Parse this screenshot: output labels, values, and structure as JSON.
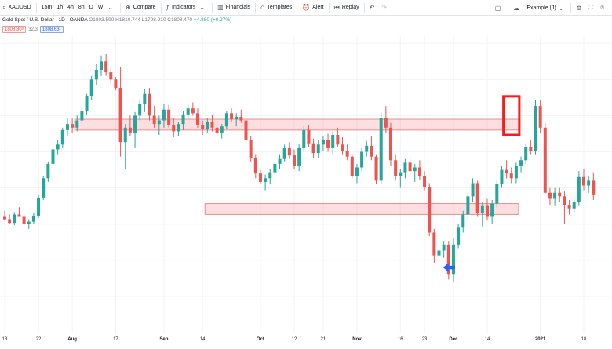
{
  "toolbar": {
    "symbol": "XAUUSD",
    "intervals": [
      "15m",
      "1h",
      "4h",
      "8h",
      "D",
      "W"
    ],
    "compare": "Compare",
    "indicators": "Indicators",
    "financials": "Financials",
    "templates": "Templates",
    "alert": "Alert",
    "replay": "Replay",
    "layout_name": "Example (J)"
  },
  "legend": {
    "title": "Gold Spot / U.S. Dollar · 1D · OANDA",
    "ohlc": "O1803.590 H1810.744 L1798.910 C1808.470",
    "change": "+4.880 (+0.27%)"
  },
  "price_boxes": {
    "sell": "1808.30⁸",
    "spread": "32.3",
    "buy": "1808.63¹"
  },
  "chart_data": {
    "type": "candlestick",
    "y_scale": "price, unlabeled in view",
    "ylim": [
      1742,
      1988
    ],
    "up_color": "#26a69a",
    "down_color": "#ef5350",
    "candles": [
      [
        1838,
        1843,
        1835,
        1836
      ],
      [
        1836,
        1840,
        1832,
        1833
      ],
      [
        1833,
        1842,
        1831,
        1840
      ],
      [
        1840,
        1846,
        1838,
        1838
      ],
      [
        1838,
        1840,
        1831,
        1832
      ],
      [
        1832,
        1836,
        1828,
        1834
      ],
      [
        1834,
        1841,
        1832,
        1839
      ],
      [
        1839,
        1856,
        1837,
        1854
      ],
      [
        1854,
        1872,
        1852,
        1870
      ],
      [
        1870,
        1884,
        1867,
        1882
      ],
      [
        1882,
        1896,
        1879,
        1894
      ],
      [
        1894,
        1902,
        1890,
        1898
      ],
      [
        1898,
        1912,
        1895,
        1910
      ],
      [
        1910,
        1920,
        1905,
        1915
      ],
      [
        1915,
        1920,
        1908,
        1912
      ],
      [
        1912,
        1922,
        1909,
        1918
      ],
      [
        1918,
        1930,
        1915,
        1926
      ],
      [
        1926,
        1940,
        1923,
        1938
      ],
      [
        1938,
        1955,
        1935,
        1952
      ],
      [
        1952,
        1965,
        1947,
        1960
      ],
      [
        1960,
        1972,
        1955,
        1967
      ],
      [
        1967,
        1973,
        1955,
        1958
      ],
      [
        1958,
        1963,
        1948,
        1952
      ],
      [
        1952,
        1954,
        1943,
        1945
      ],
      [
        1945,
        1962,
        1888,
        1900
      ],
      [
        1900,
        1915,
        1878,
        1912
      ],
      [
        1912,
        1922,
        1905,
        1908
      ],
      [
        1908,
        1925,
        1895,
        1922
      ],
      [
        1922,
        1935,
        1918,
        1932
      ],
      [
        1932,
        1944,
        1925,
        1940
      ],
      [
        1940,
        1945,
        1918,
        1922
      ],
      [
        1922,
        1930,
        1912,
        1915
      ],
      [
        1915,
        1922,
        1906,
        1918
      ],
      [
        1918,
        1932,
        1912,
        1927
      ],
      [
        1927,
        1931,
        1912,
        1914
      ],
      [
        1914,
        1920,
        1904,
        1909
      ],
      [
        1909,
        1917,
        1905,
        1915
      ],
      [
        1915,
        1926,
        1910,
        1923
      ],
      [
        1923,
        1932,
        1920,
        1928
      ],
      [
        1928,
        1933,
        1922,
        1924
      ],
      [
        1924,
        1928,
        1912,
        1914
      ],
      [
        1914,
        1918,
        1906,
        1911
      ],
      [
        1911,
        1920,
        1908,
        1917
      ],
      [
        1917,
        1923,
        1909,
        1912
      ],
      [
        1912,
        1918,
        1905,
        1908
      ],
      [
        1908,
        1915,
        1903,
        1913
      ],
      [
        1913,
        1926,
        1911,
        1924
      ],
      [
        1924,
        1928,
        1917,
        1919
      ],
      [
        1919,
        1924,
        1913,
        1921
      ],
      [
        1921,
        1927,
        1916,
        1918
      ],
      [
        1918,
        1920,
        1900,
        1902
      ],
      [
        1902,
        1905,
        1884,
        1887
      ],
      [
        1887,
        1890,
        1870,
        1874
      ],
      [
        1874,
        1877,
        1865,
        1867
      ],
      [
        1867,
        1873,
        1860,
        1870
      ],
      [
        1870,
        1878,
        1865,
        1875
      ],
      [
        1875,
        1885,
        1872,
        1882
      ],
      [
        1882,
        1890,
        1878,
        1886
      ],
      [
        1886,
        1898,
        1884,
        1895
      ],
      [
        1895,
        1900,
        1886,
        1889
      ],
      [
        1889,
        1894,
        1878,
        1880
      ],
      [
        1880,
        1898,
        1876,
        1895
      ],
      [
        1895,
        1913,
        1892,
        1910
      ],
      [
        1910,
        1914,
        1896,
        1899
      ],
      [
        1899,
        1903,
        1887,
        1891
      ],
      [
        1891,
        1902,
        1887,
        1898
      ],
      [
        1898,
        1905,
        1893,
        1902
      ],
      [
        1902,
        1907,
        1892,
        1895
      ],
      [
        1895,
        1909,
        1890,
        1906
      ],
      [
        1906,
        1912,
        1896,
        1898
      ],
      [
        1898,
        1904,
        1890,
        1893
      ],
      [
        1893,
        1898,
        1885,
        1888
      ],
      [
        1888,
        1890,
        1870,
        1872
      ],
      [
        1872,
        1882,
        1866,
        1879
      ],
      [
        1879,
        1895,
        1876,
        1892
      ],
      [
        1892,
        1901,
        1888,
        1897
      ],
      [
        1897,
        1905,
        1885,
        1888
      ],
      [
        1888,
        1890,
        1865,
        1868
      ],
      [
        1868,
        1925,
        1865,
        1920
      ],
      [
        1920,
        1930,
        1908,
        1912
      ],
      [
        1912,
        1916,
        1880,
        1885
      ],
      [
        1885,
        1890,
        1868,
        1872
      ],
      [
        1872,
        1878,
        1862,
        1875
      ],
      [
        1875,
        1886,
        1870,
        1883
      ],
      [
        1883,
        1888,
        1873,
        1876
      ],
      [
        1876,
        1882,
        1867,
        1879
      ],
      [
        1879,
        1885,
        1869,
        1872
      ],
      [
        1872,
        1876,
        1860,
        1863
      ],
      [
        1863,
        1866,
        1822,
        1825
      ],
      [
        1825,
        1828,
        1800,
        1806
      ],
      [
        1806,
        1812,
        1798,
        1810
      ],
      [
        1810,
        1818,
        1804,
        1815
      ],
      [
        1815,
        1818,
        1786,
        1790
      ],
      [
        1790,
        1820,
        1784,
        1815
      ],
      [
        1815,
        1832,
        1812,
        1829
      ],
      [
        1829,
        1843,
        1825,
        1840
      ],
      [
        1840,
        1858,
        1836,
        1855
      ],
      [
        1855,
        1870,
        1850,
        1866
      ],
      [
        1866,
        1868,
        1838,
        1841
      ],
      [
        1841,
        1850,
        1830,
        1847
      ],
      [
        1847,
        1853,
        1835,
        1838
      ],
      [
        1838,
        1852,
        1832,
        1849
      ],
      [
        1849,
        1868,
        1846,
        1865
      ],
      [
        1865,
        1880,
        1862,
        1877
      ],
      [
        1877,
        1885,
        1870,
        1874
      ],
      [
        1874,
        1879,
        1866,
        1870
      ],
      [
        1870,
        1883,
        1866,
        1880
      ],
      [
        1880,
        1888,
        1875,
        1885
      ],
      [
        1885,
        1899,
        1882,
        1896
      ],
      [
        1896,
        1902,
        1890,
        1893
      ],
      [
        1893,
        1935,
        1890,
        1930
      ],
      [
        1930,
        1935,
        1908,
        1912
      ],
      [
        1912,
        1916,
        1857,
        1858
      ],
      [
        1858,
        1862,
        1848,
        1853
      ],
      [
        1853,
        1862,
        1847,
        1858
      ],
      [
        1858,
        1862,
        1850,
        1855
      ],
      [
        1855,
        1859,
        1832,
        1848
      ],
      [
        1848,
        1852,
        1840,
        1845
      ],
      [
        1845,
        1853,
        1842,
        1850
      ],
      [
        1850,
        1876,
        1847,
        1871
      ],
      [
        1871,
        1878,
        1860,
        1864
      ],
      [
        1864,
        1872,
        1858,
        1868
      ],
      [
        1868,
        1875,
        1852,
        1856
      ]
    ],
    "zones": [
      {
        "from_index": 15,
        "to_index": 106,
        "low": 1910,
        "high": 1919
      },
      {
        "from_index": 42,
        "to_index": 106,
        "low": 1840,
        "high": 1849
      }
    ],
    "highlight": {
      "from_index": 104,
      "to_index": 106,
      "low": 1906,
      "high": 1938
    },
    "arrow": {
      "index": 92,
      "price": 1796,
      "direction": "left"
    },
    "x_ticks": [
      {
        "index": 0,
        "label": "13"
      },
      {
        "index": 7,
        "label": "22"
      },
      {
        "index": 14,
        "label": "Aug",
        "bold": true
      },
      {
        "index": 23,
        "label": "17"
      },
      {
        "index": 33,
        "label": "Sep",
        "bold": true
      },
      {
        "index": 41,
        "label": "14"
      },
      {
        "index": 53,
        "label": "Oct",
        "bold": true
      },
      {
        "index": 60,
        "label": "12"
      },
      {
        "index": 66,
        "label": "21"
      },
      {
        "index": 73,
        "label": "Nov",
        "bold": true
      },
      {
        "index": 82,
        "label": "16"
      },
      {
        "index": 87,
        "label": "23"
      },
      {
        "index": 93,
        "label": "Dec",
        "bold": true
      },
      {
        "index": 100,
        "label": "14"
      },
      {
        "index": 111,
        "label": "2021",
        "bold": true
      },
      {
        "index": 120,
        "label": "18"
      }
    ]
  }
}
